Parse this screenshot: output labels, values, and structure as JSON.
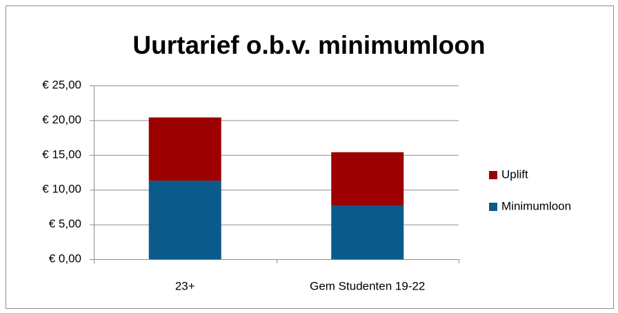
{
  "chart_data": {
    "type": "stacked_bar",
    "title": "Uurtarief o.b.v. minimumloon",
    "categories": [
      "23+",
      "Gem Studenten 19-22"
    ],
    "series": [
      {
        "name": "Minimumloon",
        "color": "#0a5a8c",
        "values": [
          11.3,
          7.7
        ]
      },
      {
        "name": "Uplift",
        "color": "#9c0000",
        "values": [
          9.1,
          7.7
        ]
      }
    ],
    "ylim": [
      0,
      25
    ],
    "yticks": [
      {
        "value": 0,
        "label": "€ 0,00"
      },
      {
        "value": 5,
        "label": "€ 5,00"
      },
      {
        "value": 10,
        "label": "€ 10,00"
      },
      {
        "value": 15,
        "label": "€ 15,00"
      },
      {
        "value": 20,
        "label": "€ 20,00"
      },
      {
        "value": 25,
        "label": "€ 25,00"
      }
    ],
    "grid": true,
    "legend": "right"
  }
}
